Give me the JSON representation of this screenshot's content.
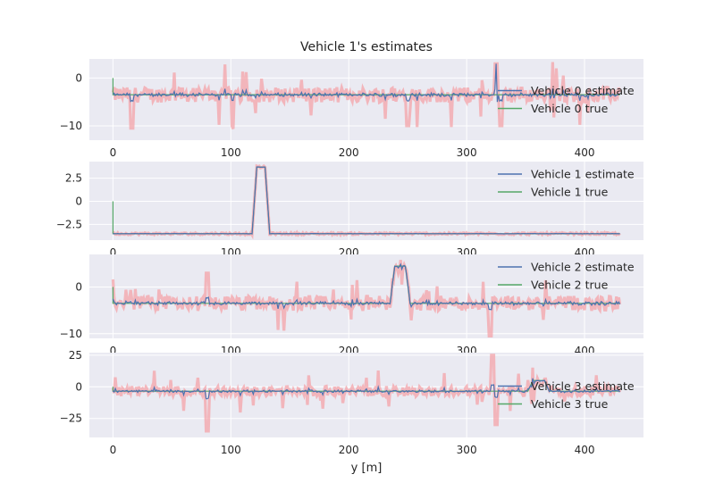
{
  "figure": {
    "title": "Vehicle 1's estimates",
    "xlabel": "y [m]",
    "background": "#eaeaf2",
    "grid_color": "#ffffff"
  },
  "colors": {
    "estimate": "#4c72b0",
    "true": "#55a868",
    "measurement": "#f4a3a8"
  },
  "chart_data": [
    {
      "type": "line",
      "xlim": [
        -20,
        450
      ],
      "ylim": [
        -13,
        4
      ],
      "grid": true,
      "x_ticks": [
        0,
        100,
        200,
        300,
        400
      ],
      "y_ticks": [
        -10,
        0
      ],
      "legend_position": "right",
      "baseline": -3.5,
      "noise_amp": 1.6,
      "spike_amp": 6,
      "series": [
        {
          "name": "Vehicle 0 estimate",
          "role": "estimate"
        },
        {
          "name": "Vehicle 0 true",
          "role": "true"
        }
      ],
      "events": [
        {
          "type": "spike",
          "x": 325,
          "y": 3,
          "width": 2
        },
        {
          "type": "spike",
          "x": 329,
          "y": -10,
          "width": 2
        },
        {
          "type": "spike",
          "x": 16,
          "y": -10.5,
          "width": 2
        },
        {
          "type": "spike",
          "x": 250,
          "y": -10,
          "width": 2
        }
      ]
    },
    {
      "type": "line",
      "xlim": [
        -20,
        450
      ],
      "ylim": [
        -4.2,
        4.3
      ],
      "grid": true,
      "x_ticks": [
        0,
        100,
        200,
        300,
        400
      ],
      "y_ticks": [
        -2.5,
        0.0,
        2.5
      ],
      "legend_position": "top-right",
      "baseline": -3.5,
      "noise_amp": 0.12,
      "spike_amp": 0,
      "series": [
        {
          "name": "Vehicle 1 estimate",
          "role": "estimate"
        },
        {
          "name": "Vehicle 1 true",
          "role": "true"
        }
      ],
      "events": [
        {
          "type": "bump",
          "x_start": 118,
          "x_end": 133,
          "y": 3.7
        }
      ]
    },
    {
      "type": "line",
      "xlim": [
        -20,
        450
      ],
      "ylim": [
        -11,
        7
      ],
      "grid": true,
      "x_ticks": [
        0,
        100,
        200,
        300,
        400
      ],
      "y_ticks": [
        -10,
        0
      ],
      "legend_position": "top-right",
      "baseline": -3.5,
      "noise_amp": 1.6,
      "spike_amp": 5,
      "series": [
        {
          "name": "Vehicle 2 estimate",
          "role": "estimate"
        },
        {
          "name": "Vehicle 2 true",
          "role": "true"
        }
      ],
      "events": [
        {
          "type": "bump",
          "x_start": 235,
          "x_end": 252,
          "y": 4.5
        },
        {
          "type": "spike",
          "x": 320,
          "y": -10.5,
          "width": 2
        },
        {
          "type": "spike",
          "x": 80,
          "y": 3,
          "width": 2
        }
      ]
    },
    {
      "type": "line",
      "xlim": [
        -20,
        450
      ],
      "ylim": [
        -40,
        27
      ],
      "grid": true,
      "x_ticks": [
        0,
        100,
        200,
        300,
        400
      ],
      "y_ticks": [
        -25,
        0,
        25
      ],
      "legend_position": "right",
      "baseline": -3.5,
      "noise_amp": 4,
      "spike_amp": 14,
      "series": [
        {
          "name": "Vehicle 3 estimate",
          "role": "estimate"
        },
        {
          "name": "Vehicle 3 true",
          "role": "true"
        }
      ],
      "events": [
        {
          "type": "bump",
          "x_start": 352,
          "x_end": 370,
          "y": 5
        },
        {
          "type": "spike",
          "x": 80,
          "y": -35,
          "width": 2
        },
        {
          "type": "spike",
          "x": 322,
          "y": 25,
          "width": 2
        },
        {
          "type": "spike",
          "x": 325,
          "y": -30,
          "width": 2
        }
      ]
    }
  ]
}
